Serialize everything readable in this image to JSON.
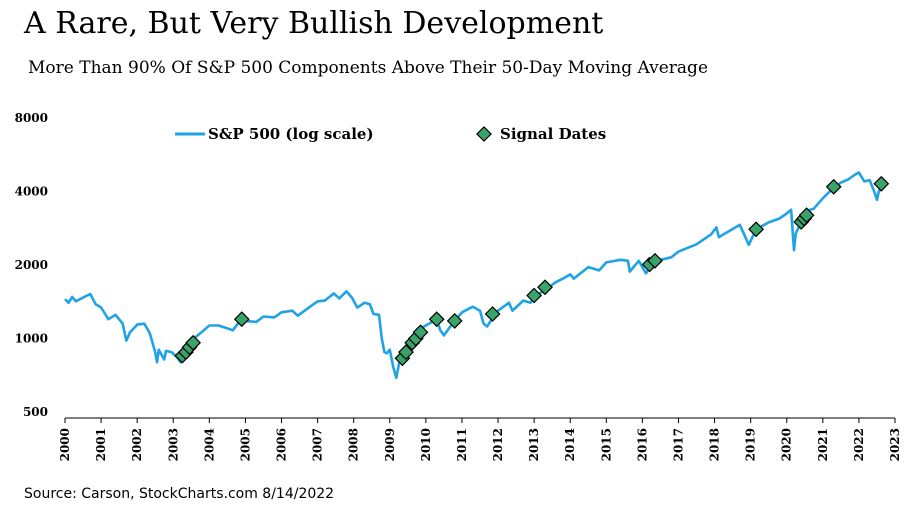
{
  "title": "A Rare, But Very Bullish Development",
  "subtitle": "More Than 90% Of S&P 500 Components Above Their 50-Day Moving Average",
  "source": "Source: Carson, StockCharts.com 8/14/2022",
  "colors": {
    "line": "#1fa2e6",
    "marker_fill": "#3aa36a",
    "marker_stroke": "#000000"
  },
  "chart_data": {
    "type": "line",
    "y_scale": "log",
    "ylim": [
      500,
      8000
    ],
    "xlim": [
      2000,
      2023
    ],
    "y_ticks": [
      8000,
      4000,
      2000,
      1000,
      500
    ],
    "x_ticks": [
      "2000",
      "2001",
      "2002",
      "2003",
      "2004",
      "2005",
      "2006",
      "2007",
      "2008",
      "2009",
      "2010",
      "2011",
      "2012",
      "2013",
      "2014",
      "2015",
      "2016",
      "2017",
      "2018",
      "2019",
      "2020",
      "2021",
      "2022",
      "2023"
    ],
    "grid": false,
    "legend_position": "top",
    "series": [
      {
        "name": "S&P 500 (log scale)",
        "style": "line",
        "points": [
          [
            2000.0,
            1450
          ],
          [
            2000.1,
            1400
          ],
          [
            2000.2,
            1480
          ],
          [
            2000.3,
            1420
          ],
          [
            2000.5,
            1470
          ],
          [
            2000.7,
            1520
          ],
          [
            2000.85,
            1380
          ],
          [
            2001.0,
            1340
          ],
          [
            2001.2,
            1200
          ],
          [
            2001.4,
            1250
          ],
          [
            2001.6,
            1150
          ],
          [
            2001.7,
            980
          ],
          [
            2001.8,
            1060
          ],
          [
            2002.0,
            1140
          ],
          [
            2002.2,
            1150
          ],
          [
            2002.35,
            1050
          ],
          [
            2002.5,
            880
          ],
          [
            2002.55,
            800
          ],
          [
            2002.6,
            900
          ],
          [
            2002.75,
            820
          ],
          [
            2002.8,
            890
          ],
          [
            2002.95,
            880
          ],
          [
            2003.1,
            840
          ],
          [
            2003.2,
            800
          ],
          [
            2003.3,
            880
          ],
          [
            2003.5,
            980
          ],
          [
            2003.75,
            1050
          ],
          [
            2004.0,
            1130
          ],
          [
            2004.25,
            1130
          ],
          [
            2004.5,
            1100
          ],
          [
            2004.65,
            1080
          ],
          [
            2004.85,
            1180
          ],
          [
            2005.0,
            1180
          ],
          [
            2005.3,
            1170
          ],
          [
            2005.5,
            1230
          ],
          [
            2005.8,
            1220
          ],
          [
            2006.0,
            1280
          ],
          [
            2006.3,
            1300
          ],
          [
            2006.45,
            1240
          ],
          [
            2006.7,
            1320
          ],
          [
            2007.0,
            1420
          ],
          [
            2007.2,
            1430
          ],
          [
            2007.45,
            1530
          ],
          [
            2007.6,
            1460
          ],
          [
            2007.8,
            1560
          ],
          [
            2007.95,
            1470
          ],
          [
            2008.1,
            1340
          ],
          [
            2008.3,
            1400
          ],
          [
            2008.45,
            1380
          ],
          [
            2008.55,
            1260
          ],
          [
            2008.7,
            1250
          ],
          [
            2008.78,
            1000
          ],
          [
            2008.85,
            880
          ],
          [
            2008.92,
            870
          ],
          [
            2009.0,
            900
          ],
          [
            2009.1,
            760
          ],
          [
            2009.18,
            690
          ],
          [
            2009.3,
            850
          ],
          [
            2009.5,
            930
          ],
          [
            2009.7,
            1060
          ],
          [
            2009.9,
            1110
          ],
          [
            2010.0,
            1130
          ],
          [
            2010.3,
            1200
          ],
          [
            2010.4,
            1080
          ],
          [
            2010.5,
            1030
          ],
          [
            2010.7,
            1130
          ],
          [
            2011.0,
            1280
          ],
          [
            2011.3,
            1350
          ],
          [
            2011.5,
            1300
          ],
          [
            2011.6,
            1150
          ],
          [
            2011.7,
            1120
          ],
          [
            2011.9,
            1250
          ],
          [
            2012.0,
            1300
          ],
          [
            2012.3,
            1400
          ],
          [
            2012.4,
            1300
          ],
          [
            2012.7,
            1430
          ],
          [
            2012.9,
            1400
          ],
          [
            2013.0,
            1480
          ],
          [
            2013.3,
            1580
          ],
          [
            2013.6,
            1700
          ],
          [
            2013.8,
            1760
          ],
          [
            2014.0,
            1830
          ],
          [
            2014.1,
            1760
          ],
          [
            2014.5,
            1960
          ],
          [
            2014.8,
            1900
          ],
          [
            2015.0,
            2050
          ],
          [
            2015.4,
            2100
          ],
          [
            2015.6,
            2080
          ],
          [
            2015.65,
            1880
          ],
          [
            2015.9,
            2080
          ],
          [
            2016.1,
            1850
          ],
          [
            2016.3,
            2070
          ],
          [
            2016.5,
            2100
          ],
          [
            2016.8,
            2150
          ],
          [
            2017.0,
            2270
          ],
          [
            2017.5,
            2430
          ],
          [
            2017.9,
            2670
          ],
          [
            2018.05,
            2850
          ],
          [
            2018.12,
            2600
          ],
          [
            2018.3,
            2700
          ],
          [
            2018.7,
            2920
          ],
          [
            2018.95,
            2420
          ],
          [
            2019.1,
            2700
          ],
          [
            2019.3,
            2880
          ],
          [
            2019.5,
            2990
          ],
          [
            2019.8,
            3100
          ],
          [
            2020.0,
            3250
          ],
          [
            2020.12,
            3370
          ],
          [
            2020.2,
            2300
          ],
          [
            2020.25,
            2700
          ],
          [
            2020.45,
            3100
          ],
          [
            2020.6,
            3350
          ],
          [
            2020.75,
            3400
          ],
          [
            2021.0,
            3750
          ],
          [
            2021.3,
            4150
          ],
          [
            2021.5,
            4350
          ],
          [
            2021.7,
            4480
          ],
          [
            2021.9,
            4700
          ],
          [
            2022.0,
            4780
          ],
          [
            2022.15,
            4400
          ],
          [
            2022.3,
            4450
          ],
          [
            2022.45,
            3900
          ],
          [
            2022.5,
            3700
          ],
          [
            2022.55,
            4000
          ],
          [
            2022.62,
            4200
          ]
        ]
      },
      {
        "name": "Signal Dates",
        "style": "marker",
        "points": [
          [
            2003.25,
            850
          ],
          [
            2003.35,
            880
          ],
          [
            2003.45,
            920
          ],
          [
            2003.55,
            960
          ],
          [
            2004.9,
            1200
          ],
          [
            2009.35,
            830
          ],
          [
            2009.45,
            880
          ],
          [
            2009.62,
            960
          ],
          [
            2009.72,
            1000
          ],
          [
            2009.85,
            1060
          ],
          [
            2010.3,
            1200
          ],
          [
            2010.8,
            1180
          ],
          [
            2011.85,
            1260
          ],
          [
            2013.0,
            1500
          ],
          [
            2013.3,
            1620
          ],
          [
            2016.2,
            2010
          ],
          [
            2016.35,
            2080
          ],
          [
            2019.15,
            2800
          ],
          [
            2020.4,
            3000
          ],
          [
            2020.48,
            3100
          ],
          [
            2020.55,
            3200
          ],
          [
            2021.3,
            4180
          ],
          [
            2022.62,
            4300
          ]
        ]
      }
    ]
  }
}
